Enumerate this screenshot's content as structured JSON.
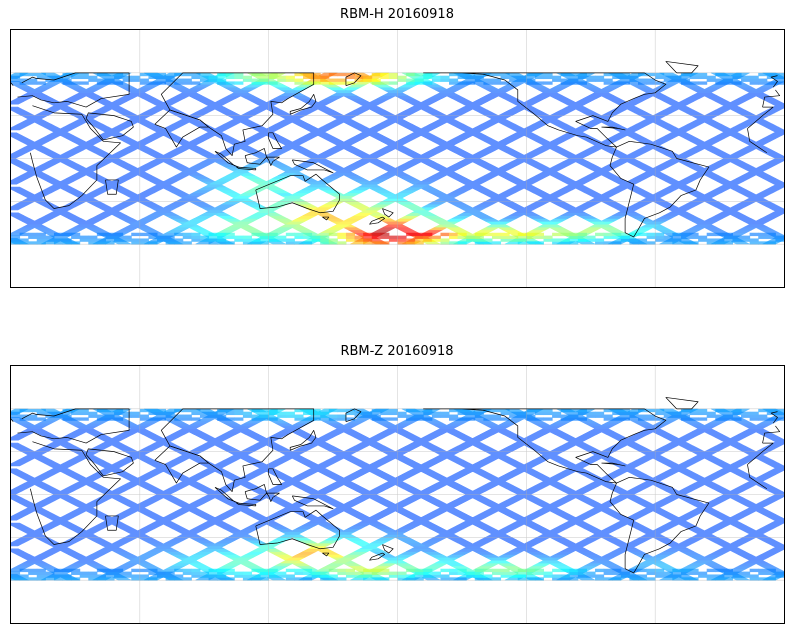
{
  "panels": [
    {
      "title": "RBM-H 20160918",
      "variable": "RBM-H",
      "date": "20160918",
      "colormap": "jet (semi-transparent)",
      "background_value": 0.2,
      "hotspots": [
        {
          "lon": 151,
          "lat": 58,
          "value": 0.78,
          "spread_lon": 28,
          "spread_lat": 6
        },
        {
          "lon": 120,
          "lat": 58,
          "value": 0.55,
          "spread_lon": 20,
          "spread_lat": 5
        },
        {
          "lon": 175,
          "lat": -52,
          "value": 0.95,
          "spread_lon": 22,
          "spread_lat": 10
        },
        {
          "lon": 150,
          "lat": -40,
          "value": 0.7,
          "spread_lon": 25,
          "spread_lat": 12
        },
        {
          "lon": -170,
          "lat": -52,
          "value": 0.9,
          "spread_lon": 18,
          "spread_lat": 5
        },
        {
          "lon": -130,
          "lat": -52,
          "value": 0.62,
          "spread_lon": 40,
          "spread_lat": 5
        },
        {
          "lon": -95,
          "lat": -50,
          "value": 0.55,
          "spread_lon": 25,
          "spread_lat": 5
        },
        {
          "lon": 115,
          "lat": -48,
          "value": 0.5,
          "spread_lon": 25,
          "spread_lat": 8
        },
        {
          "lon": 115,
          "lat": -20,
          "value": 0.45,
          "spread_lon": 15,
          "spread_lat": 10
        },
        {
          "lon": -175,
          "lat": -40,
          "value": 0.5,
          "spread_lon": 8,
          "spread_lat": 12
        }
      ]
    },
    {
      "title": "RBM-Z 20160918",
      "variable": "RBM-Z",
      "date": "20160918",
      "colormap": "jet (semi-transparent)",
      "background_value": 0.2,
      "hotspots": [
        {
          "lon": 140,
          "lat": -42,
          "value": 0.72,
          "spread_lon": 18,
          "spread_lat": 8
        },
        {
          "lon": 165,
          "lat": -52,
          "value": 0.58,
          "spread_lon": 25,
          "spread_lat": 5
        },
        {
          "lon": -170,
          "lat": -50,
          "value": 0.45,
          "spread_lon": 18,
          "spread_lat": 6
        },
        {
          "lon": -130,
          "lat": -52,
          "value": 0.5,
          "spread_lon": 25,
          "spread_lat": 5
        },
        {
          "lon": 115,
          "lat": -48,
          "value": 0.45,
          "spread_lon": 30,
          "spread_lat": 8
        },
        {
          "lon": 155,
          "lat": -35,
          "value": 0.4,
          "spread_lon": 20,
          "spread_lat": 6
        },
        {
          "lon": 130,
          "lat": 58,
          "value": 0.35,
          "spread_lon": 25,
          "spread_lat": 5
        },
        {
          "lon": -55,
          "lat": -50,
          "value": 0.3,
          "spread_lon": 15,
          "spread_lat": 6
        }
      ]
    }
  ],
  "map": {
    "projection": "Plate Carree, central longitude 180",
    "lon_range": [
      0,
      360
    ],
    "lat_range": [
      -90,
      90
    ],
    "data_lat_range": [
      -60,
      60
    ],
    "grid_lon_step": 60,
    "grid_lat_step": 30,
    "gridlines": true,
    "coastlines": true,
    "swath_pattern": "ascending/descending satellite swaths"
  }
}
